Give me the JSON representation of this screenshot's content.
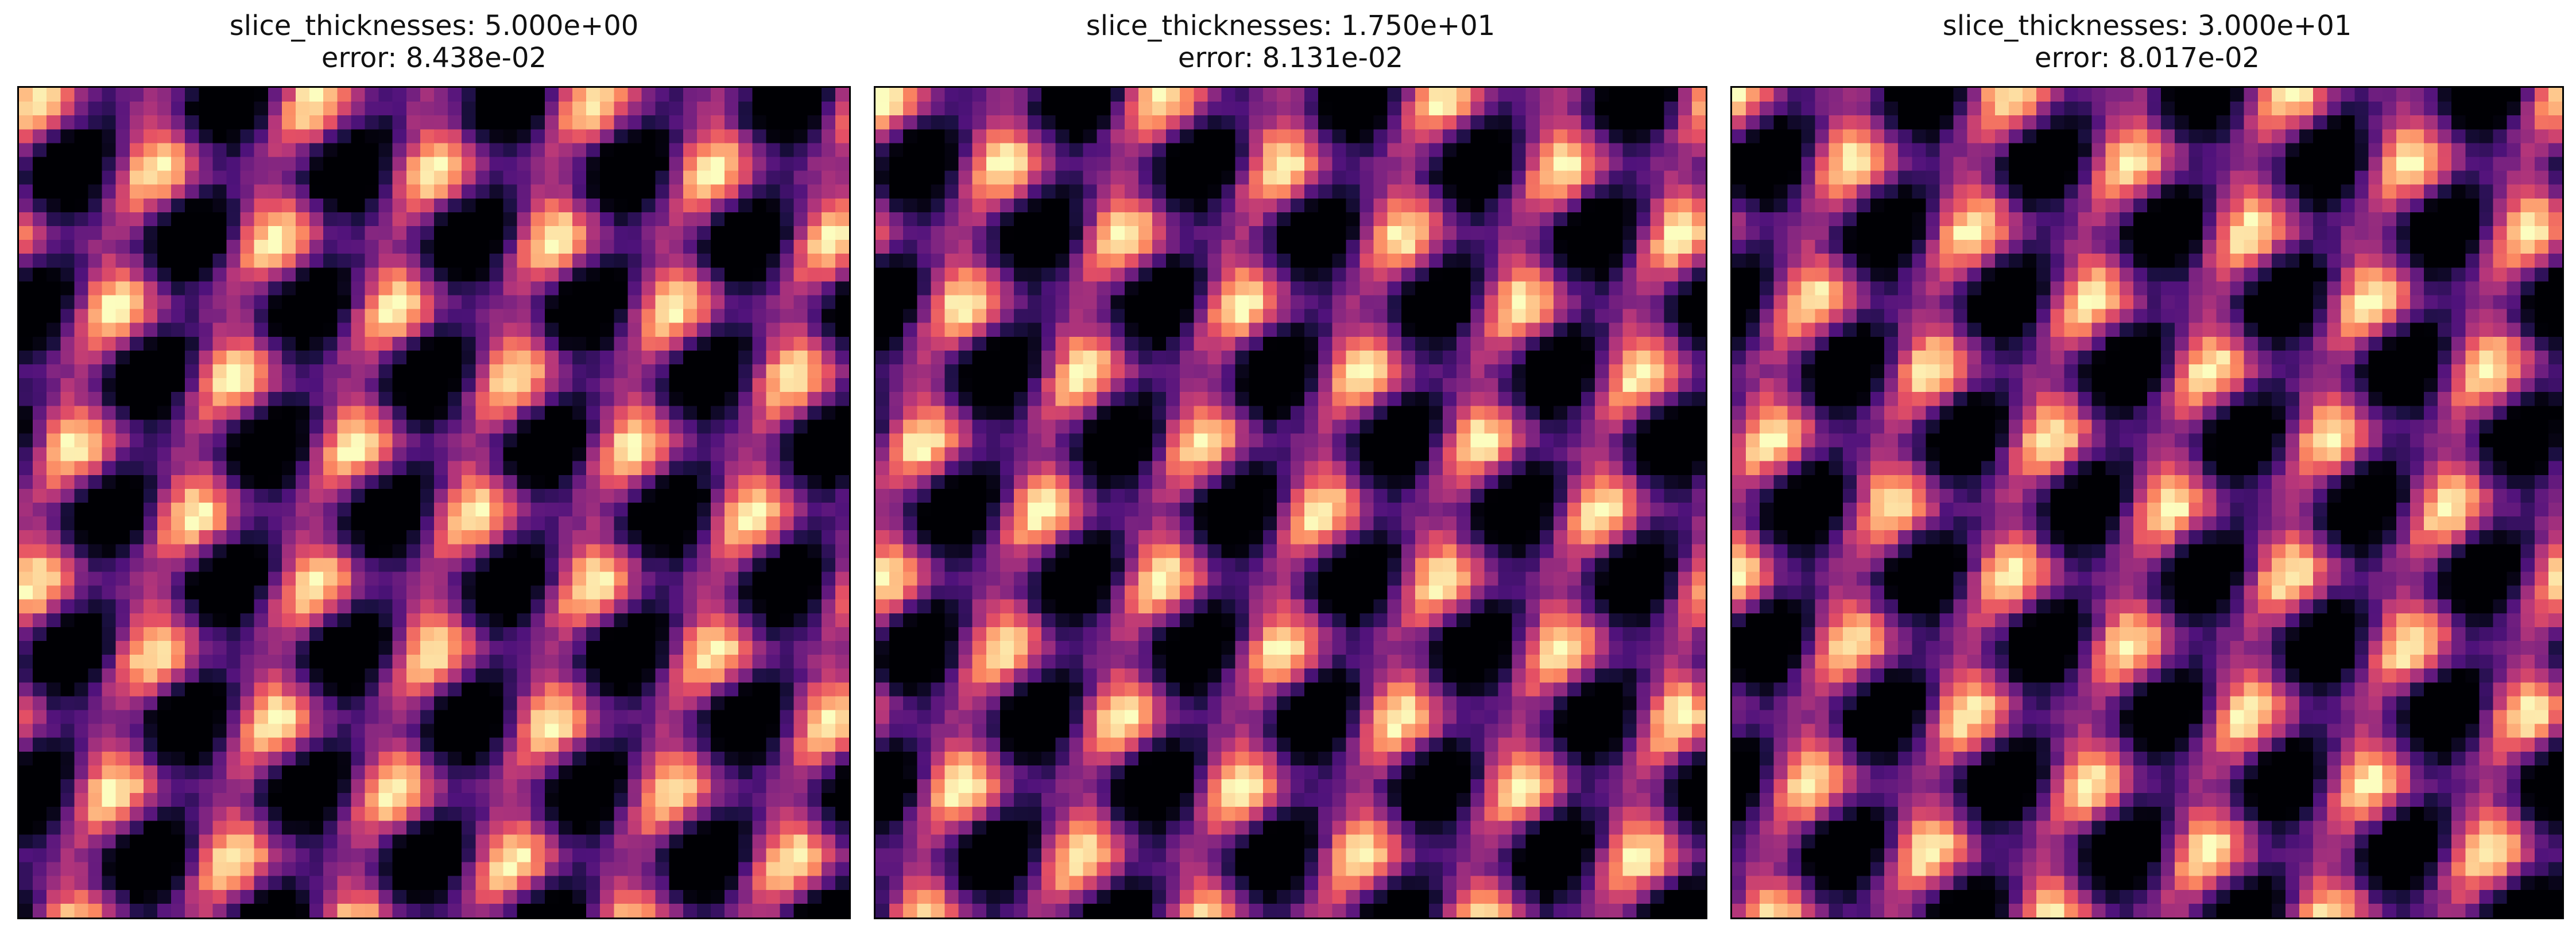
{
  "figure": {
    "colormap": "magma",
    "panels": [
      {
        "param_label": "slice_thicknesses: 5.000e+00",
        "error_label": "error: 8.438e-02",
        "variant": 0
      },
      {
        "param_label": "slice_thicknesses: 1.750e+01",
        "error_label": "error: 8.131e-02",
        "variant": 1
      },
      {
        "param_label": "slice_thicknesses: 3.000e+01",
        "error_label": "error: 8.017e-02",
        "variant": 2
      }
    ]
  }
}
